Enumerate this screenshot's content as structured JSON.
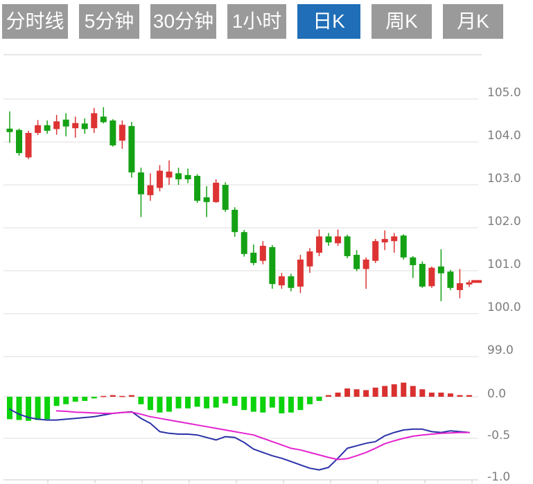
{
  "toolbar": {
    "buttons": [
      {
        "label": "分时线",
        "active": false
      },
      {
        "label": "5分钟",
        "active": false
      },
      {
        "label": "30分钟",
        "active": false
      },
      {
        "label": "1小时",
        "active": false
      },
      {
        "label": "日K",
        "active": true
      },
      {
        "label": "周K",
        "active": false
      },
      {
        "label": "月K",
        "active": false
      }
    ]
  },
  "colors": {
    "candle_up": "#dd3333",
    "candle_down": "#14a114",
    "macd_up": "#d93030",
    "macd_down": "#0bd20b",
    "dif_line": "#2b31a8",
    "dea_line": "#e322cf",
    "grid": "#dcdcdc",
    "top_border": "#cccccc",
    "axis_line": "#c8c8c8",
    "axis_text": "#7d7d7d",
    "price_marker": "#e03030",
    "button_bg": "#9a9a9a",
    "button_active_bg": "#1f6eb7",
    "button_text": "#ffffff"
  },
  "chart_data": {
    "type": "candlestick",
    "panels": [
      "price",
      "macd"
    ],
    "legend": "none",
    "grid": "horizontal",
    "price_axis": {
      "side": "right",
      "tick_values": [
        105,
        104,
        103,
        102,
        101,
        100,
        99
      ],
      "tick_labels": [
        "105.0",
        "104.0",
        "103.0",
        "102.0",
        "101.0",
        "100.0",
        "99.0"
      ]
    },
    "macd_axis": {
      "side": "right",
      "tick_values": [
        0,
        -0.5,
        -1
      ],
      "tick_labels": [
        "0.0",
        "-0.5",
        "-1.0"
      ]
    },
    "current_price_marker": 100.75,
    "candles": [
      [
        104.31,
        104.71,
        103.98,
        104.23
      ],
      [
        104.28,
        104.31,
        103.68,
        103.74
      ],
      [
        103.64,
        104.26,
        103.6,
        104.21
      ],
      [
        104.21,
        104.51,
        104.16,
        104.39
      ],
      [
        104.39,
        104.5,
        104.19,
        104.26
      ],
      [
        104.3,
        104.63,
        104.17,
        104.48
      ],
      [
        104.52,
        104.67,
        104.13,
        104.36
      ],
      [
        104.32,
        104.59,
        104.1,
        104.44
      ],
      [
        104.43,
        104.55,
        104.19,
        104.3
      ],
      [
        104.32,
        104.79,
        104.21,
        104.67
      ],
      [
        104.59,
        104.81,
        104.43,
        104.46
      ],
      [
        104.5,
        104.53,
        103.89,
        103.92
      ],
      [
        104.03,
        104.5,
        103.84,
        104.4
      ],
      [
        104.37,
        104.47,
        103.17,
        103.29
      ],
      [
        103.29,
        103.4,
        102.25,
        102.78
      ],
      [
        102.76,
        103.27,
        102.63,
        102.99
      ],
      [
        102.93,
        103.46,
        102.85,
        103.33
      ],
      [
        103.17,
        103.57,
        103.0,
        103.31
      ],
      [
        103.27,
        103.4,
        103.0,
        103.13
      ],
      [
        103.23,
        103.38,
        103.04,
        103.13
      ],
      [
        103.21,
        103.25,
        102.58,
        102.63
      ],
      [
        102.71,
        102.97,
        102.25,
        102.6
      ],
      [
        102.6,
        103.13,
        102.58,
        103.05
      ],
      [
        103.0,
        103.06,
        102.37,
        102.42
      ],
      [
        102.42,
        102.48,
        101.79,
        101.9
      ],
      [
        101.9,
        101.95,
        101.33,
        101.39
      ],
      [
        101.42,
        101.61,
        101.13,
        101.18
      ],
      [
        101.23,
        101.69,
        101.15,
        101.58
      ],
      [
        101.55,
        101.6,
        100.58,
        100.69
      ],
      [
        100.66,
        100.95,
        100.58,
        100.87
      ],
      [
        100.87,
        100.93,
        100.52,
        100.6
      ],
      [
        100.63,
        101.37,
        100.48,
        101.26
      ],
      [
        101.1,
        101.53,
        100.95,
        101.45
      ],
      [
        101.42,
        101.96,
        101.34,
        101.8
      ],
      [
        101.8,
        101.88,
        101.58,
        101.66
      ],
      [
        101.64,
        101.96,
        101.58,
        101.8
      ],
      [
        101.8,
        101.84,
        101.29,
        101.34
      ],
      [
        101.37,
        101.48,
        100.99,
        101.04
      ],
      [
        101.04,
        101.31,
        100.58,
        101.26
      ],
      [
        101.23,
        101.74,
        101.18,
        101.69
      ],
      [
        101.66,
        101.94,
        101.48,
        101.74
      ],
      [
        101.69,
        101.88,
        101.42,
        101.8
      ],
      [
        101.82,
        101.85,
        101.26,
        101.31
      ],
      [
        101.31,
        101.34,
        100.83,
        101.13
      ],
      [
        101.16,
        101.22,
        100.6,
        100.63
      ],
      [
        100.64,
        101.1,
        100.6,
        101.07
      ],
      [
        101.1,
        101.5,
        100.29,
        100.94
      ],
      [
        100.98,
        101.02,
        100.55,
        100.6
      ],
      [
        100.55,
        101.04,
        100.36,
        100.71
      ],
      [
        100.68,
        100.78,
        100.62,
        100.73
      ]
    ],
    "macd": {
      "histogram": [
        -0.27,
        -0.28,
        -0.29,
        -0.28,
        -0.27,
        -0.11,
        -0.09,
        -0.06,
        -0.05,
        -0.02,
        0.01,
        0.02,
        0.01,
        0.02,
        -0.09,
        -0.16,
        -0.19,
        -0.18,
        -0.14,
        -0.14,
        -0.12,
        -0.14,
        -0.13,
        -0.08,
        -0.11,
        -0.16,
        -0.18,
        -0.19,
        -0.13,
        -0.2,
        -0.19,
        -0.16,
        -0.09,
        -0.05,
        0.02,
        0.05,
        0.1,
        0.09,
        0.08,
        0.11,
        0.13,
        0.15,
        0.17,
        0.13,
        0.09,
        0.05,
        0.05,
        0.04,
        0.02,
        0.02
      ],
      "dif": [
        -0.15,
        -0.21,
        -0.25,
        -0.27,
        -0.28,
        -0.28,
        -0.27,
        -0.26,
        -0.25,
        -0.24,
        -0.22,
        -0.2,
        -0.19,
        -0.18,
        -0.26,
        -0.32,
        -0.42,
        -0.44,
        -0.45,
        -0.45,
        -0.46,
        -0.49,
        -0.52,
        -0.48,
        -0.49,
        -0.55,
        -0.63,
        -0.67,
        -0.71,
        -0.74,
        -0.78,
        -0.82,
        -0.86,
        -0.88,
        -0.85,
        -0.74,
        -0.62,
        -0.59,
        -0.56,
        -0.54,
        -0.47,
        -0.43,
        -0.4,
        -0.39,
        -0.39,
        -0.42,
        -0.43,
        -0.41,
        -0.42,
        -0.43
      ],
      "dea": [
        null,
        null,
        null,
        null,
        null,
        -0.17,
        -0.175,
        -0.185,
        -0.19,
        -0.195,
        -0.2,
        -0.2,
        -0.19,
        -0.185,
        -0.21,
        -0.24,
        -0.26,
        -0.28,
        -0.3,
        -0.32,
        -0.34,
        -0.36,
        -0.38,
        -0.4,
        -0.42,
        -0.44,
        -0.46,
        -0.5,
        -0.54,
        -0.58,
        -0.62,
        -0.64,
        -0.67,
        -0.7,
        -0.73,
        -0.755,
        -0.745,
        -0.71,
        -0.67,
        -0.62,
        -0.565,
        -0.53,
        -0.5,
        -0.475,
        -0.46,
        -0.45,
        -0.44,
        -0.435,
        -0.43,
        -0.43
      ]
    }
  }
}
